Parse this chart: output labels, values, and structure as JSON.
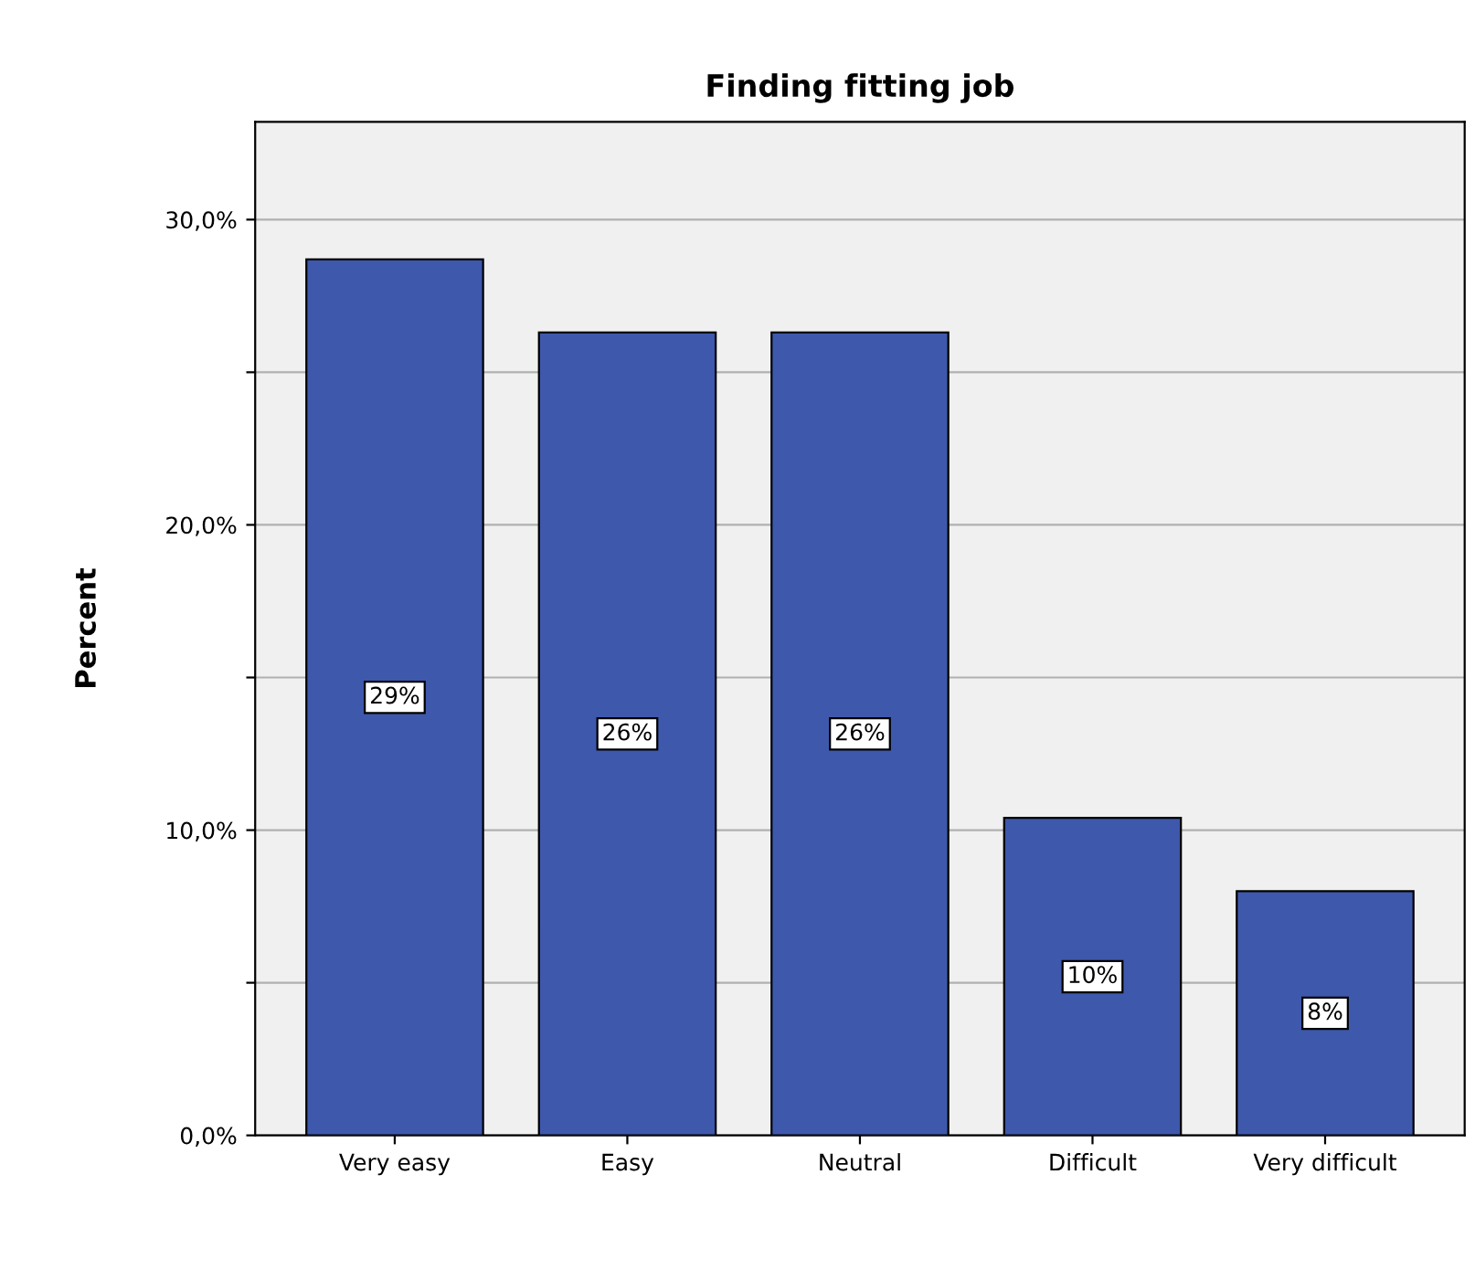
{
  "chart_data": {
    "type": "bar",
    "title": "Finding fitting job",
    "ylabel": "Percent",
    "categories": [
      "Very easy",
      "Easy",
      "Neutral",
      "Difficult",
      "Very difficult"
    ],
    "values": [
      28.7,
      26.3,
      26.3,
      10.4,
      8.0
    ],
    "value_labels": [
      "29%",
      "26%",
      "26%",
      "10%",
      "8%"
    ],
    "color": "#3e58ac",
    "ylim": [
      0,
      33.2
    ],
    "yticks": [
      {
        "value": 0,
        "label": "0,0%"
      },
      {
        "value": 5,
        "label": null
      },
      {
        "value": 10,
        "label": "10,0%"
      },
      {
        "value": 15,
        "label": null
      },
      {
        "value": 20,
        "label": "20,0%"
      },
      {
        "value": 25,
        "label": null
      },
      {
        "value": 30,
        "label": "30,0%"
      }
    ],
    "grid": "y"
  }
}
